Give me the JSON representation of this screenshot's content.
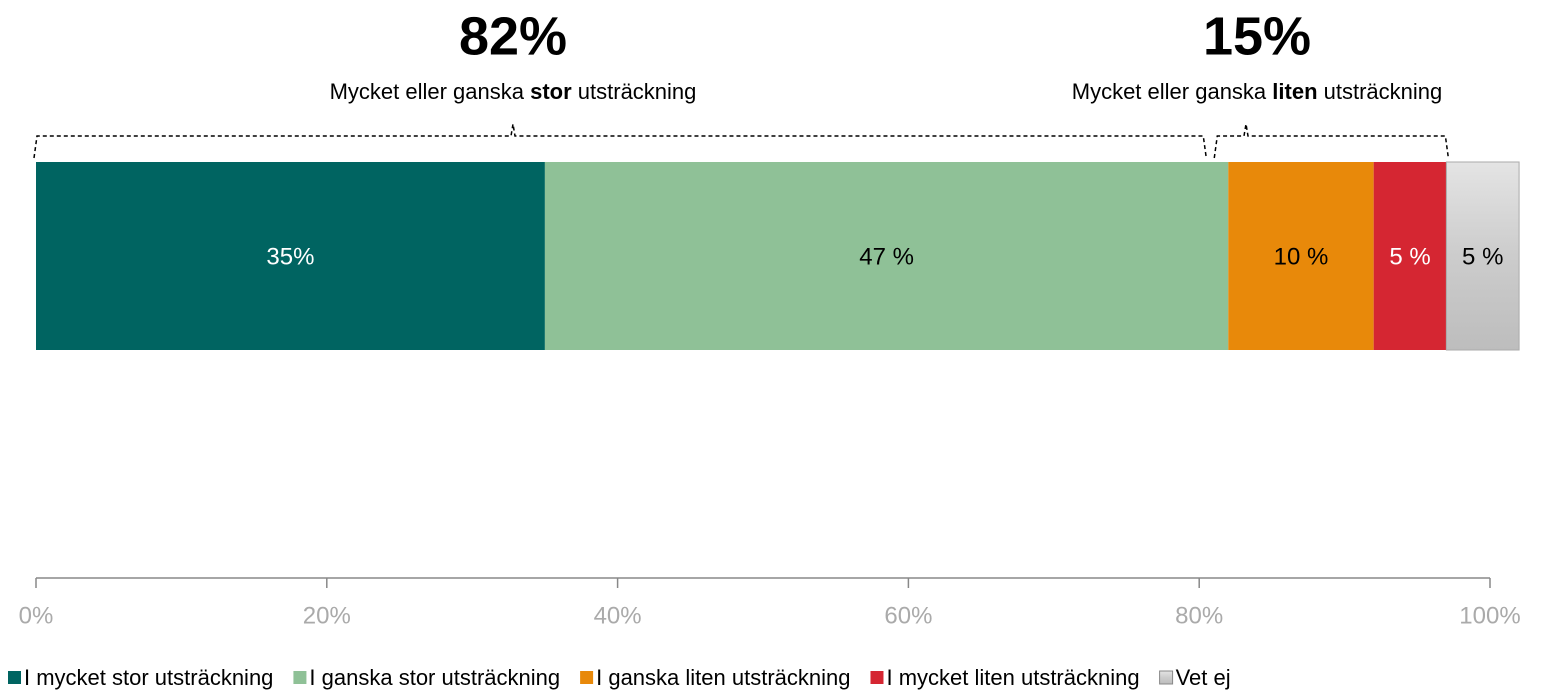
{
  "chart_data": {
    "type": "stacked_bar_horizontal",
    "annotations": [
      {
        "text": "82%",
        "caption": [
          "Mycket eller ganska ",
          "stor",
          " utsträckning"
        ]
      },
      {
        "text": "15%",
        "caption": [
          "Mycket eller ganska ",
          "liten",
          " utsträckning"
        ]
      }
    ],
    "series": [
      {
        "name": "I mycket stor utsträckning",
        "color": "#006461",
        "values": [
          35
        ],
        "value_labels": [
          "35%"
        ]
      },
      {
        "name": "I ganska stor utsträckning",
        "color": "#8fc197",
        "values": [
          47
        ],
        "value_labels": [
          "47 %"
        ]
      },
      {
        "name": "I ganska liten utsträckning",
        "color": "#e8890a",
        "values": [
          10
        ],
        "value_labels": [
          "10 %"
        ]
      },
      {
        "name": "I mycket liten utsträckning",
        "color": "#d52632",
        "values": [
          5
        ],
        "value_labels": [
          "5 %"
        ]
      },
      {
        "name": "Vet ej",
        "color": "#cccccc",
        "values": [
          5
        ],
        "value_labels": [
          "5 %"
        ]
      }
    ],
    "xlim": [
      0,
      100
    ],
    "xticks": [
      {
        "value": 0,
        "label": "0%"
      },
      {
        "value": 20,
        "label": "20%"
      },
      {
        "value": 40,
        "label": "40%"
      },
      {
        "value": 60,
        "label": "60%"
      },
      {
        "value": 80,
        "label": "80%"
      },
      {
        "value": 100,
        "label": "100%"
      }
    ],
    "legend": "bottom"
  }
}
